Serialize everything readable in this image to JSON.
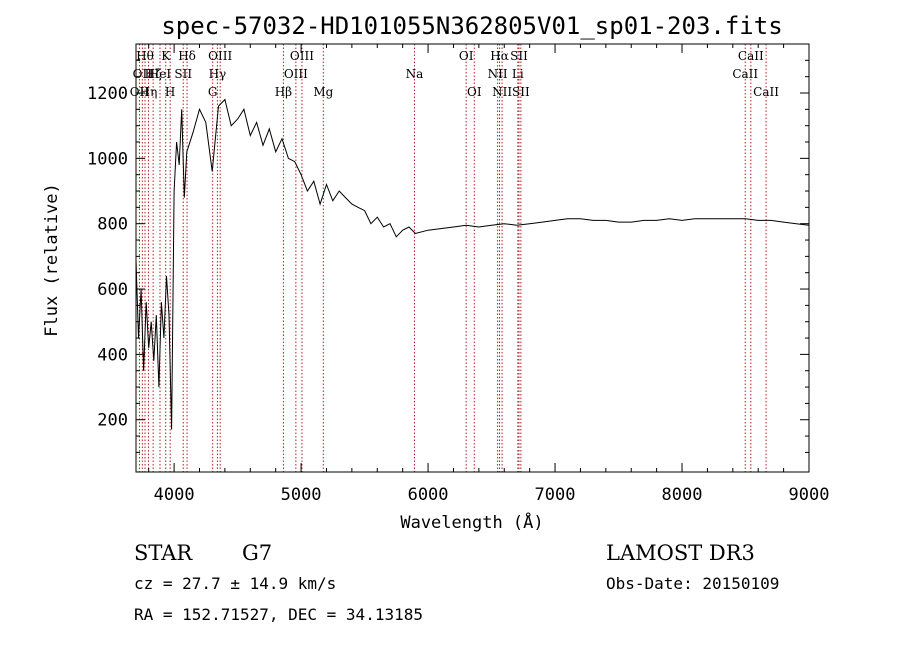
{
  "chart_data": {
    "type": "line",
    "title": "spec-57032-HD101055N362805V01_sp01-203.fits",
    "xlabel": "Wavelength (Å)",
    "ylabel": "Flux (relative)",
    "xlim": [
      3700,
      9000
    ],
    "ylim": [
      40,
      1350
    ],
    "x_ticks": [
      4000,
      5000,
      6000,
      7000,
      8000,
      9000
    ],
    "y_ticks": [
      200,
      400,
      600,
      800,
      1000,
      1200
    ],
    "series": [
      {
        "name": "spectrum",
        "x": [
          3700,
          3720,
          3740,
          3760,
          3780,
          3800,
          3820,
          3840,
          3860,
          3880,
          3900,
          3920,
          3940,
          3960,
          3980,
          4000,
          4020,
          4040,
          4060,
          4080,
          4100,
          4150,
          4200,
          4250,
          4300,
          4350,
          4400,
          4450,
          4500,
          4550,
          4600,
          4650,
          4700,
          4750,
          4800,
          4850,
          4900,
          4950,
          5000,
          5050,
          5100,
          5150,
          5200,
          5250,
          5300,
          5350,
          5400,
          5450,
          5500,
          5550,
          5600,
          5650,
          5700,
          5750,
          5800,
          5850,
          5900,
          6000,
          6100,
          6200,
          6300,
          6400,
          6500,
          6600,
          6700,
          6800,
          6900,
          7000,
          7100,
          7200,
          7300,
          7400,
          7500,
          7600,
          7700,
          7800,
          7900,
          8000,
          8100,
          8200,
          8300,
          8400,
          8500,
          8600,
          8700,
          8800,
          8900,
          9000
        ],
        "y": [
          690,
          450,
          600,
          350,
          560,
          420,
          500,
          380,
          520,
          300,
          560,
          450,
          640,
          520,
          170,
          900,
          1050,
          980,
          1150,
          880,
          1020,
          1080,
          1150,
          1110,
          960,
          1160,
          1180,
          1100,
          1120,
          1150,
          1070,
          1110,
          1040,
          1090,
          1020,
          1060,
          1000,
          990,
          950,
          900,
          930,
          860,
          920,
          870,
          900,
          880,
          860,
          850,
          840,
          800,
          820,
          790,
          800,
          760,
          780,
          790,
          770,
          780,
          785,
          790,
          795,
          790,
          795,
          800,
          795,
          800,
          805,
          810,
          815,
          815,
          810,
          810,
          805,
          805,
          810,
          810,
          815,
          810,
          815,
          815,
          815,
          815,
          815,
          810,
          810,
          805,
          800,
          795
        ]
      }
    ],
    "emission_lines": [
      {
        "x": 3727,
        "label": "OII",
        "row": 2
      },
      {
        "x": 3750,
        "label": "OII",
        "row": 1
      },
      {
        "x": 3771,
        "label": "Hθ",
        "row": 0
      },
      {
        "x": 3798,
        "label": "Hη",
        "row": 2
      },
      {
        "x": 3835,
        "label": "Hζ",
        "row": 1
      },
      {
        "x": 3889,
        "label": "HeI",
        "row": 1
      },
      {
        "x": 3934,
        "label": "K",
        "row": 0
      },
      {
        "x": 3969,
        "label": "H",
        "row": 2
      },
      {
        "x": 4072,
        "label": "SII",
        "row": 1
      },
      {
        "x": 4102,
        "label": "Hδ",
        "row": 0
      },
      {
        "x": 4304,
        "label": "G",
        "row": 2
      },
      {
        "x": 4341,
        "label": "Hγ",
        "row": 1
      },
      {
        "x": 4363,
        "label": "OIII",
        "row": 0
      },
      {
        "x": 4861,
        "label": "Hβ",
        "row": 2
      },
      {
        "x": 4959,
        "label": "OIII",
        "row": 1
      },
      {
        "x": 5007,
        "label": "OIII",
        "row": 0
      },
      {
        "x": 5175,
        "label": "Mg",
        "row": 2
      },
      {
        "x": 5893,
        "label": "Na",
        "row": 1
      },
      {
        "x": 6300,
        "label": "OI",
        "row": 0
      },
      {
        "x": 6364,
        "label": "OI",
        "row": 2
      },
      {
        "x": 6548,
        "label": "NII",
        "row": 1
      },
      {
        "x": 6563,
        "label": "Hα",
        "row": 0
      },
      {
        "x": 6583,
        "label": "NII",
        "row": 2
      },
      {
        "x": 6707,
        "label": "Li",
        "row": 1
      },
      {
        "x": 6716,
        "label": "SII",
        "row": 0
      },
      {
        "x": 6731,
        "label": "SII",
        "row": 2
      },
      {
        "x": 8498,
        "label": "CaII",
        "row": 1
      },
      {
        "x": 8542,
        "label": "CaII",
        "row": 0
      },
      {
        "x": 8662,
        "label": "CaII",
        "row": 2
      }
    ]
  },
  "info": {
    "object_class": "STAR",
    "subclass": "G7",
    "survey": "LAMOST DR3",
    "redshift": "cz = 27.7 ± 14.9 km/s",
    "obs_date": "Obs-Date: 20150109",
    "coords": "RA = 152.71527, DEC =  34.13185"
  },
  "colors": {
    "line_marker": "#b22222",
    "spectrum": "#000000",
    "axis": "#000000"
  }
}
